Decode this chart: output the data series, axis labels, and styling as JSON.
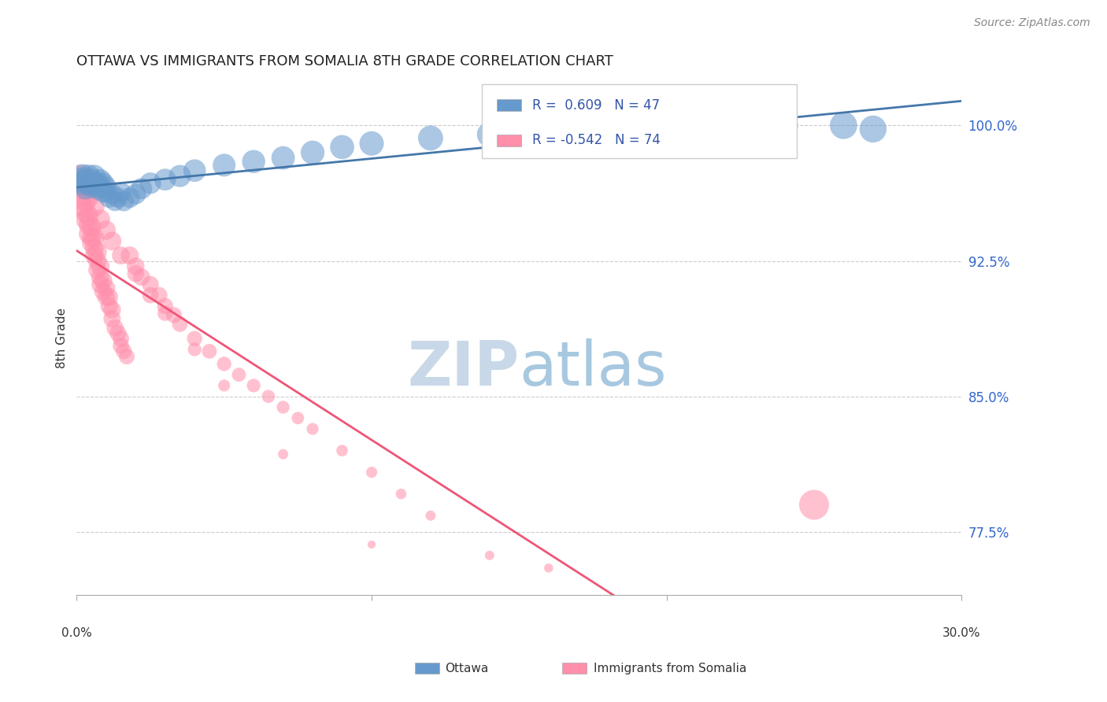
{
  "title": "OTTAWA VS IMMIGRANTS FROM SOMALIA 8TH GRADE CORRELATION CHART",
  "source": "Source: ZipAtlas.com",
  "ylabel": "8th Grade",
  "ytick_labels": [
    "77.5%",
    "85.0%",
    "92.5%",
    "100.0%"
  ],
  "ytick_values": [
    0.775,
    0.85,
    0.925,
    1.0
  ],
  "xlim": [
    0.0,
    0.3
  ],
  "ylim": [
    0.74,
    1.025
  ],
  "blue_R": 0.609,
  "blue_N": 47,
  "pink_R": -0.542,
  "pink_N": 74,
  "blue_color": "#6699CC",
  "pink_color": "#FF8FAB",
  "trend_blue": "#4477AA",
  "trend_pink": "#EE5577",
  "watermark_zip_color": "#C8D8E8",
  "watermark_atlas_color": "#A8C8E0",
  "blue_x": [
    0.001,
    0.002,
    0.002,
    0.003,
    0.003,
    0.004,
    0.004,
    0.005,
    0.005,
    0.006,
    0.006,
    0.007,
    0.007,
    0.008,
    0.008,
    0.009,
    0.009,
    0.01,
    0.01,
    0.011,
    0.012,
    0.013,
    0.014,
    0.015,
    0.016,
    0.018,
    0.02,
    0.022,
    0.025,
    0.03,
    0.035,
    0.04,
    0.05,
    0.06,
    0.07,
    0.08,
    0.09,
    0.1,
    0.12,
    0.14,
    0.16,
    0.18,
    0.2,
    0.22,
    0.24,
    0.26,
    0.27
  ],
  "blue_y": [
    0.97,
    0.968,
    0.972,
    0.965,
    0.97,
    0.968,
    0.972,
    0.966,
    0.97,
    0.968,
    0.972,
    0.965,
    0.968,
    0.97,
    0.966,
    0.963,
    0.968,
    0.963,
    0.966,
    0.96,
    0.962,
    0.958,
    0.96,
    0.963,
    0.958,
    0.96,
    0.962,
    0.965,
    0.968,
    0.97,
    0.972,
    0.975,
    0.978,
    0.98,
    0.982,
    0.985,
    0.988,
    0.99,
    0.993,
    0.995,
    0.997,
    0.998,
    0.999,
    1.0,
    1.0,
    1.0,
    0.998
  ],
  "pink_x": [
    0.001,
    0.001,
    0.002,
    0.002,
    0.002,
    0.003,
    0.003,
    0.003,
    0.004,
    0.004,
    0.004,
    0.005,
    0.005,
    0.005,
    0.006,
    0.006,
    0.006,
    0.007,
    0.007,
    0.007,
    0.008,
    0.008,
    0.008,
    0.009,
    0.009,
    0.01,
    0.01,
    0.011,
    0.011,
    0.012,
    0.012,
    0.013,
    0.014,
    0.015,
    0.015,
    0.016,
    0.017,
    0.018,
    0.02,
    0.022,
    0.025,
    0.028,
    0.03,
    0.033,
    0.035,
    0.04,
    0.045,
    0.05,
    0.055,
    0.06,
    0.065,
    0.07,
    0.075,
    0.08,
    0.09,
    0.1,
    0.11,
    0.12,
    0.14,
    0.16,
    0.004,
    0.006,
    0.008,
    0.01,
    0.012,
    0.015,
    0.02,
    0.025,
    0.03,
    0.04,
    0.05,
    0.07,
    0.1,
    0.25
  ],
  "pink_y": [
    0.968,
    0.972,
    0.965,
    0.96,
    0.955,
    0.958,
    0.952,
    0.948,
    0.95,
    0.945,
    0.94,
    0.944,
    0.938,
    0.935,
    0.938,
    0.932,
    0.928,
    0.93,
    0.925,
    0.92,
    0.922,
    0.916,
    0.912,
    0.914,
    0.908,
    0.91,
    0.905,
    0.905,
    0.9,
    0.898,
    0.893,
    0.888,
    0.885,
    0.882,
    0.878,
    0.875,
    0.872,
    0.928,
    0.922,
    0.916,
    0.912,
    0.906,
    0.9,
    0.895,
    0.89,
    0.882,
    0.875,
    0.868,
    0.862,
    0.856,
    0.85,
    0.844,
    0.838,
    0.832,
    0.82,
    0.808,
    0.796,
    0.784,
    0.762,
    0.755,
    0.96,
    0.955,
    0.948,
    0.942,
    0.936,
    0.928,
    0.918,
    0.906,
    0.896,
    0.876,
    0.856,
    0.818,
    0.768,
    0.79
  ],
  "blue_sizes": [
    200,
    180,
    190,
    160,
    170,
    165,
    175,
    155,
    160,
    165,
    170,
    155,
    160,
    150,
    155,
    145,
    155,
    140,
    145,
    135,
    140,
    130,
    135,
    140,
    135,
    140,
    145,
    150,
    155,
    160,
    165,
    170,
    175,
    180,
    185,
    190,
    195,
    200,
    210,
    215,
    220,
    225,
    230,
    235,
    240,
    250,
    245
  ],
  "pink_sizes": [
    160,
    170,
    150,
    145,
    140,
    145,
    138,
    132,
    138,
    130,
    125,
    132,
    125,
    120,
    128,
    120,
    115,
    122,
    115,
    110,
    118,
    110,
    105,
    112,
    105,
    110,
    105,
    108,
    102,
    105,
    100,
    98,
    95,
    92,
    88,
    85,
    82,
    110,
    105,
    100,
    95,
    90,
    88,
    85,
    82,
    78,
    74,
    70,
    66,
    62,
    58,
    55,
    52,
    48,
    45,
    42,
    38,
    35,
    30,
    28,
    145,
    140,
    132,
    125,
    118,
    108,
    98,
    88,
    78,
    62,
    48,
    35,
    22,
    300
  ]
}
